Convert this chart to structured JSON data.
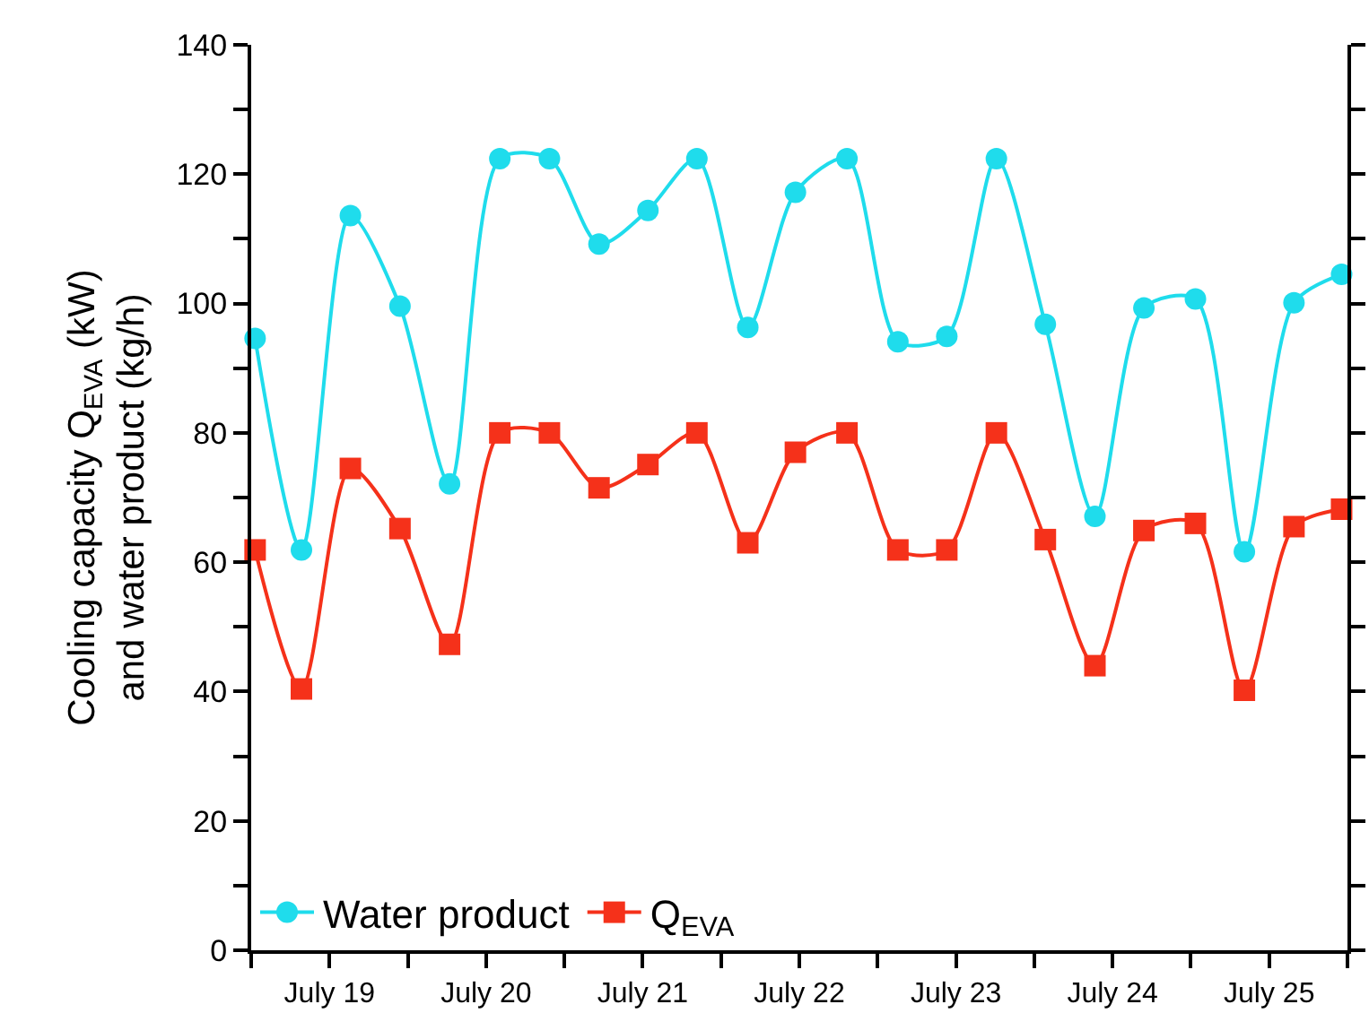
{
  "chart_data": {
    "type": "line",
    "ylabel": "Cooling capacity Q$_{EVA}$ (kW)\nand water product (kg/h)",
    "x": [
      "--07-19T00:36",
      "--07-19T07:42",
      "--07-19T15:12",
      "--07-19T22:48",
      "--07-20T06:24",
      "--07-20T14:06",
      "--07-20T21:42",
      "--07-21T05:18",
      "--07-21T12:48",
      "--07-21T20:18",
      "--07-22T04:06",
      "--07-22T11:24",
      "--07-22T19:18",
      "--07-23T03:06",
      "--07-23T10:36",
      "--07-23T18:12",
      "--07-24T01:42",
      "--07-24T09:18",
      "--07-24T16:48",
      "--07-25T00:42",
      "--07-25T08:12",
      "--07-25T15:48",
      "--07-25T23:06"
    ],
    "series": [
      {
        "name": "Water product",
        "color": "#1fdcec",
        "marker": "circle",
        "values": [
          94.6,
          61.9,
          113.6,
          99.6,
          72.1,
          122.4,
          122.4,
          109.2,
          114.4,
          122.4,
          96.3,
          117.2,
          122.4,
          94.1,
          94.9,
          122.4,
          96.8,
          67.1,
          99.3,
          100.7,
          61.6,
          100.1,
          104.5
        ]
      },
      {
        "name": "Q$_{EVA}$",
        "color": "#f5311a",
        "marker": "square",
        "values": [
          61.9,
          40.4,
          74.5,
          65.2,
          47.3,
          80.0,
          80.0,
          71.5,
          75.1,
          80.0,
          63.0,
          77.0,
          80.0,
          61.9,
          61.9,
          80.0,
          63.5,
          44.0,
          64.9,
          66.0,
          40.2,
          65.5,
          68.2
        ]
      }
    ],
    "xlim": [
      "--07-19T00:00",
      "--07-26T00:00"
    ],
    "xticks": [
      {
        "value": "--07-19T00:00",
        "label": null
      },
      {
        "value": "--07-19T12:00",
        "label": "July 19"
      },
      {
        "value": "--07-20T00:00",
        "label": null
      },
      {
        "value": "--07-20T12:00",
        "label": "July 20"
      },
      {
        "value": "--07-21T00:00",
        "label": null
      },
      {
        "value": "--07-21T12:00",
        "label": "July 21"
      },
      {
        "value": "--07-22T00:00",
        "label": null
      },
      {
        "value": "--07-22T12:00",
        "label": "July 22"
      },
      {
        "value": "--07-23T00:00",
        "label": null
      },
      {
        "value": "--07-23T12:00",
        "label": "July 23"
      },
      {
        "value": "--07-24T00:00",
        "label": null
      },
      {
        "value": "--07-24T12:00",
        "label": "July 24"
      },
      {
        "value": "--07-25T00:00",
        "label": null
      },
      {
        "value": "--07-25T12:00",
        "label": "July 25"
      },
      {
        "value": "--07-26T00:00",
        "label": null
      }
    ],
    "ylim": [
      0,
      140
    ],
    "yticks": [
      0,
      {
        "value": 10,
        "label": null
      },
      20,
      {
        "value": 30,
        "label": null
      },
      40,
      {
        "value": 50,
        "label": null
      },
      60,
      {
        "value": 70,
        "label": null
      },
      80,
      {
        "value": 90,
        "label": null
      },
      100,
      {
        "value": 110,
        "label": null
      },
      120,
      {
        "value": 130,
        "label": null
      },
      140
    ],
    "legend": "bottom left",
    "line_style": "solid"
  }
}
